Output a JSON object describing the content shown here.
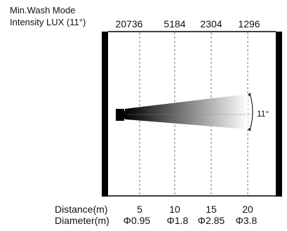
{
  "header": {
    "mode": "Min.Wash Mode",
    "intensity_label": "Intensity LUX (11°)"
  },
  "lux_values": [
    "20736",
    "5184",
    "2304",
    "1296"
  ],
  "beam": {
    "angle_label": "11°"
  },
  "footer": {
    "distance_label": "Distance(m)",
    "diameter_label": "Diameter(m)",
    "distances": [
      "5",
      "10",
      "15",
      "20"
    ],
    "diameters": [
      "Φ0.95",
      "Φ1.8",
      "Φ2.85",
      "Φ3.8"
    ]
  }
}
